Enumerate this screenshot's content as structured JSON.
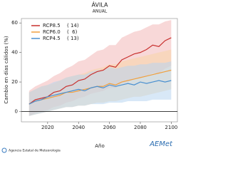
{
  "chart_data": {
    "type": "band-line",
    "title": "ÁVILA",
    "subtitle": "ANUAL",
    "y_label": "Cambio en días cálidos (%)",
    "x_label": "Año",
    "x": [
      2008,
      2012,
      2016,
      2020,
      2024,
      2028,
      2032,
      2036,
      2040,
      2044,
      2048,
      2052,
      2056,
      2060,
      2064,
      2068,
      2072,
      2076,
      2080,
      2084,
      2088,
      2092,
      2096,
      2100
    ],
    "xlim": [
      2003,
      2104
    ],
    "xticks": [
      2020,
      2040,
      2060,
      2080,
      2100
    ],
    "ylim": [
      -7,
      63
    ],
    "yticks": [
      0,
      20,
      40,
      60
    ],
    "zero_line": true,
    "legend": "upper-left",
    "series": [
      {
        "name": "RCP8.5",
        "models": "( 14)",
        "color": "#c8302e",
        "band_color": "#f2b8b8",
        "values": [
          5,
          8,
          9,
          10,
          13,
          14,
          17,
          18,
          21,
          22,
          25,
          27,
          28,
          31,
          30,
          35,
          37,
          39,
          40,
          42,
          45,
          44,
          48,
          50
        ],
        "lower": [
          -3,
          -1,
          0,
          1,
          3,
          4,
          6,
          7,
          9,
          10,
          12,
          13,
          14,
          16,
          16,
          19,
          20,
          22,
          23,
          24,
          26,
          26,
          29,
          31
        ],
        "upper": [
          14,
          17,
          19,
          21,
          24,
          26,
          29,
          31,
          34,
          35,
          38,
          41,
          42,
          45,
          45,
          50,
          52,
          54,
          55,
          57,
          59,
          59,
          61,
          62
        ]
      },
      {
        "name": "RCP6.0",
        "models": "(  6)",
        "color": "#f0a040",
        "band_color": "#f8d6a8",
        "values": [
          5,
          7,
          8,
          9,
          10,
          11,
          13,
          13,
          14,
          15,
          16,
          17,
          17,
          19,
          18,
          20,
          21,
          22,
          23,
          24,
          25,
          26,
          27,
          28
        ],
        "lower": [
          -3,
          -2,
          -1,
          0,
          1,
          2,
          3,
          3,
          4,
          4,
          5,
          6,
          6,
          7,
          7,
          8,
          9,
          10,
          10,
          11,
          12,
          13,
          14,
          15
        ],
        "upper": [
          13,
          15,
          17,
          18,
          19,
          21,
          23,
          24,
          25,
          26,
          28,
          29,
          30,
          32,
          32,
          34,
          35,
          36,
          37,
          38,
          39,
          40,
          41,
          42
        ]
      },
      {
        "name": "RCP4.5",
        "models": "( 13)",
        "color": "#4a90d0",
        "band_color": "#b8d6f0",
        "values": [
          5,
          7,
          8,
          10,
          11,
          12,
          13,
          14,
          15,
          14,
          16,
          17,
          16,
          18,
          17,
          18,
          19,
          18,
          20,
          19,
          20,
          21,
          20,
          21
        ],
        "lower": [
          -3,
          -2,
          -1,
          0,
          1,
          2,
          3,
          3,
          4,
          4,
          5,
          5,
          5,
          6,
          6,
          6,
          7,
          7,
          7,
          7,
          8,
          8,
          8,
          8
        ],
        "upper": [
          13,
          15,
          17,
          18,
          20,
          21,
          23,
          24,
          25,
          25,
          27,
          28,
          28,
          30,
          29,
          30,
          31,
          31,
          32,
          32,
          33,
          33,
          33,
          34
        ]
      }
    ],
    "footer": "Agencia Estatal de Meteorología",
    "logo": "AEMet"
  }
}
